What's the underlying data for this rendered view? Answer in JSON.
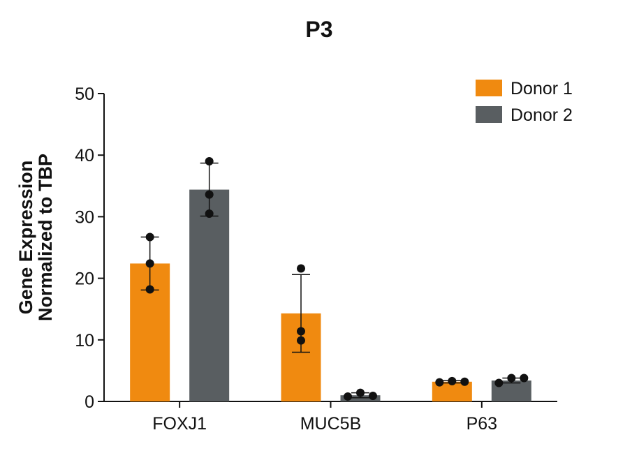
{
  "chart_data": {
    "type": "bar",
    "title": "P3",
    "ylabel_line1": "Gene Expression",
    "ylabel_line2": "Normalized to TBP",
    "xlabel": "",
    "ylim": [
      0,
      50
    ],
    "yticks": [
      "0",
      "10",
      "20",
      "30",
      "40",
      "50"
    ],
    "categories": [
      "FOXJ1",
      "MUC5B",
      "P63"
    ],
    "legend_position": "top-right",
    "grid": false,
    "series": [
      {
        "name": "Donor 1",
        "color": "#f08a10",
        "values": [
          22.4,
          14.3,
          3.2
        ],
        "error": [
          4.3,
          6.3,
          0.2
        ],
        "points": [
          [
            26.7,
            22.4,
            18.2
          ],
          [
            21.6,
            11.4,
            9.9
          ],
          [
            3.1,
            3.3,
            3.2
          ]
        ]
      },
      {
        "name": "Donor 2",
        "color": "#595e61",
        "values": [
          34.4,
          1.0,
          3.4
        ],
        "error": [
          4.3,
          0.4,
          0.4
        ],
        "points": [
          [
            39.0,
            33.6,
            30.5
          ],
          [
            0.8,
            1.4,
            0.9
          ],
          [
            3.0,
            3.8,
            3.8
          ]
        ]
      }
    ]
  }
}
